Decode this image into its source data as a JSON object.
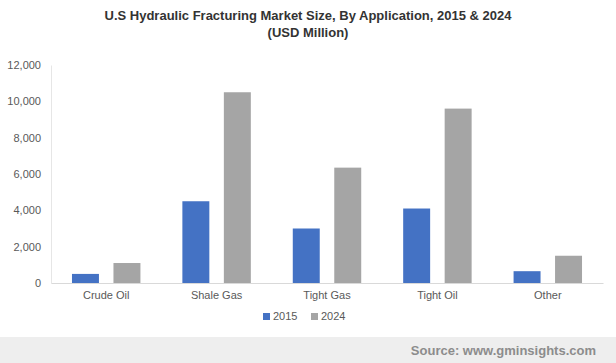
{
  "chart_data": {
    "type": "bar",
    "title": "U.S Hydraulic Fracturing Market Size, By Application, 2015 & 2024",
    "subtitle": "(USD Million)",
    "annotations": [
      "Source: www.gminsights.com"
    ],
    "categories": [
      "Crude Oil",
      "Shale Gas",
      "Tight Gas",
      "Tight Oil",
      "Other"
    ],
    "series": [
      {
        "name": "2015",
        "color": "#4472c4",
        "values": [
          500,
          4500,
          3000,
          4100,
          650
        ]
      },
      {
        "name": "2024",
        "color": "#a5a5a5",
        "values": [
          1100,
          10500,
          6350,
          9600,
          1500
        ]
      }
    ],
    "ylim": [
      0,
      12000
    ],
    "yticks": [
      0,
      {
        "value": 2000,
        "label": "2,000"
      },
      {
        "value": 4000,
        "label": "4,000"
      },
      {
        "value": 6000,
        "label": "6,000"
      },
      {
        "value": 8000,
        "label": "8,000"
      },
      {
        "value": 10000,
        "label": "10,000"
      },
      {
        "value": 12000,
        "label": "12,000"
      }
    ],
    "grid": false,
    "legend": "bottom"
  }
}
